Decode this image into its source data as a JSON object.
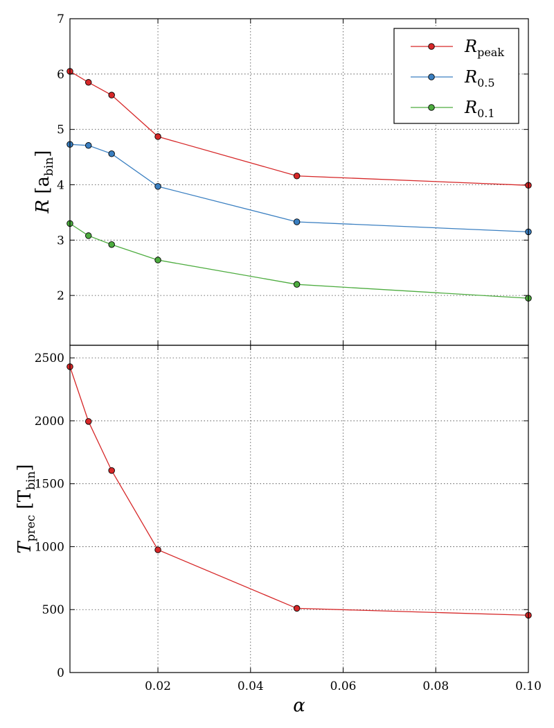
{
  "chart_data": [
    {
      "type": "line",
      "panel": "top",
      "x": [
        0.001,
        0.005,
        0.01,
        0.02,
        0.05,
        0.1
      ],
      "series": [
        {
          "name": "R_peak",
          "label_main": "R",
          "label_sub": "peak",
          "color": "#d62728",
          "values": [
            6.05,
            5.85,
            5.62,
            4.87,
            4.16,
            3.99
          ]
        },
        {
          "name": "R_0.5",
          "label_main": "R",
          "label_sub": "0.5",
          "color": "#3a7fc1",
          "values": [
            4.73,
            4.71,
            4.56,
            3.97,
            3.33,
            3.15
          ]
        },
        {
          "name": "R_0.1",
          "label_main": "R",
          "label_sub": "0.1",
          "color": "#4dac3f",
          "values": [
            3.3,
            3.08,
            2.92,
            2.64,
            2.2,
            1.95
          ]
        }
      ],
      "xlim": [
        0.001,
        0.1
      ],
      "ylim": [
        1.1,
        7
      ],
      "yticks": [
        2,
        3,
        4,
        5,
        6,
        7
      ],
      "ytick_labels": [
        "2",
        "3",
        "4",
        "5",
        "6",
        "7"
      ],
      "ylabel_main": "R",
      "ylabel_unit": "[a",
      "ylabel_unit_sub": "bin",
      "ylabel_close": "]",
      "legend": "top-right",
      "grid": true
    },
    {
      "type": "line",
      "panel": "bottom",
      "x": [
        0.001,
        0.005,
        0.01,
        0.02,
        0.05,
        0.1
      ],
      "series": [
        {
          "name": "T_prec",
          "color": "#d62728",
          "values": [
            2430,
            1995,
            1605,
            975,
            510,
            455
          ]
        }
      ],
      "xlim": [
        0.001,
        0.1
      ],
      "ylim": [
        0,
        2600
      ],
      "yticks": [
        0,
        500,
        1000,
        1500,
        2000,
        2500
      ],
      "ytick_labels": [
        "0",
        "500",
        "1000",
        "1500",
        "2000",
        "2500"
      ],
      "xticks": [
        0.02,
        0.04,
        0.06,
        0.08,
        0.1
      ],
      "xtick_labels": [
        "0.02",
        "0.04",
        "0.06",
        "0.08",
        "0.10"
      ],
      "xlabel": "α",
      "ylabel_main": "T",
      "ylabel_main_sub": "prec",
      "ylabel_unit": "[T",
      "ylabel_unit_sub": "bin",
      "ylabel_close": "]",
      "grid": true
    }
  ]
}
